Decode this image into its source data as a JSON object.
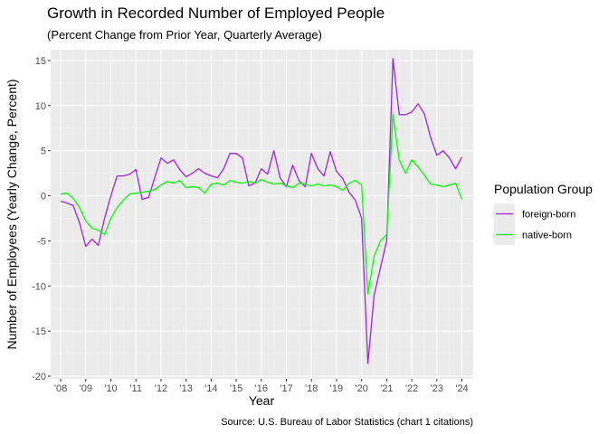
{
  "chart_data": {
    "type": "line",
    "title": "Growth in Recorded Number of Employed People",
    "subtitle": "(Percent Change from Prior Year, Quarterly Average)",
    "xlabel": "Year",
    "ylabel": "Number of Employees (Yearly Change, Percent)",
    "caption": "Source: U.S. Bureau of Labor Statistics (chart 1 citations)",
    "xlim": [
      2007.6,
      2024.45
    ],
    "ylim": [
      -20.3,
      16.2
    ],
    "x_ticks": [
      {
        "value": 2008,
        "label": "'08"
      },
      {
        "value": 2009,
        "label": "'09"
      },
      {
        "value": 2010,
        "label": "'10"
      },
      {
        "value": 2011,
        "label": "'11"
      },
      {
        "value": 2012,
        "label": "'12"
      },
      {
        "value": 2013,
        "label": "'13"
      },
      {
        "value": 2014,
        "label": "'14"
      },
      {
        "value": 2015,
        "label": "'15"
      },
      {
        "value": 2016,
        "label": "'16"
      },
      {
        "value": 2017,
        "label": "'17"
      },
      {
        "value": 2018,
        "label": "'18"
      },
      {
        "value": 2019,
        "label": "'19"
      },
      {
        "value": 2020,
        "label": "'20"
      },
      {
        "value": 2021,
        "label": "'21"
      },
      {
        "value": 2022,
        "label": "'22"
      },
      {
        "value": 2023,
        "label": "'23"
      },
      {
        "value": 2024,
        "label": "'24"
      }
    ],
    "y_ticks": [
      {
        "value": 15,
        "label": "15"
      },
      {
        "value": 10,
        "label": "10"
      },
      {
        "value": 5,
        "label": "5"
      },
      {
        "value": 0,
        "label": "0"
      },
      {
        "value": -5,
        "label": "-5"
      },
      {
        "value": -10,
        "label": "-10"
      },
      {
        "value": -15,
        "label": "-15"
      },
      {
        "value": -20,
        "label": "-20"
      }
    ],
    "grid": true,
    "panel_background": "#ebebeb",
    "legend": {
      "title": "Population Group",
      "position": "right"
    },
    "x": [
      2008.0,
      2008.25,
      2008.5,
      2008.75,
      2009.0,
      2009.25,
      2009.5,
      2009.75,
      2010.0,
      2010.25,
      2010.5,
      2010.75,
      2011.0,
      2011.25,
      2011.5,
      2011.75,
      2012.0,
      2012.25,
      2012.5,
      2012.75,
      2013.0,
      2013.25,
      2013.5,
      2013.75,
      2014.0,
      2014.25,
      2014.5,
      2014.75,
      2015.0,
      2015.25,
      2015.5,
      2015.75,
      2016.0,
      2016.25,
      2016.5,
      2016.75,
      2017.0,
      2017.25,
      2017.5,
      2017.75,
      2018.0,
      2018.25,
      2018.5,
      2018.75,
      2019.0,
      2019.25,
      2019.5,
      2019.75,
      2020.0,
      2020.25,
      2020.5,
      2020.75,
      2021.0,
      2021.25,
      2021.5,
      2021.75,
      2022.0,
      2022.25,
      2022.5,
      2022.75,
      2023.0,
      2023.25,
      2023.5,
      2023.75,
      2024.0
    ],
    "series": [
      {
        "name": "foreign-born",
        "color": "#a020f0",
        "values": [
          -0.6,
          -0.8,
          -1.1,
          -3.0,
          -5.6,
          -4.8,
          -5.5,
          -2.5,
          0.0,
          2.2,
          2.2,
          2.4,
          2.9,
          -0.4,
          -0.2,
          2.0,
          4.2,
          3.6,
          4.0,
          2.9,
          2.1,
          2.5,
          3.0,
          2.5,
          2.2,
          2.0,
          3.0,
          4.7,
          4.7,
          4.2,
          1.1,
          1.4,
          3.0,
          2.4,
          5.0,
          2.0,
          1.0,
          3.4,
          1.7,
          1.0,
          4.7,
          3.0,
          2.2,
          4.9,
          2.7,
          1.9,
          0.4,
          -0.5,
          -2.5,
          -18.6,
          -11.0,
          -8.0,
          -5.0,
          15.2,
          9.0,
          9.0,
          9.3,
          10.2,
          9.1,
          6.5,
          4.5,
          5.0,
          4.2,
          3.0,
          4.3
        ]
      },
      {
        "name": "native-born",
        "color": "#00ff00",
        "values": [
          0.2,
          0.3,
          -0.3,
          -1.3,
          -2.8,
          -3.6,
          -3.8,
          -4.3,
          -2.5,
          -1.3,
          -0.5,
          0.2,
          0.3,
          0.4,
          0.5,
          0.7,
          1.2,
          1.6,
          1.4,
          1.7,
          0.9,
          1.0,
          0.9,
          0.3,
          1.3,
          1.4,
          1.2,
          1.7,
          1.5,
          1.4,
          1.6,
          1.4,
          1.8,
          1.5,
          1.3,
          1.4,
          1.1,
          0.9,
          1.4,
          1.3,
          1.1,
          1.3,
          1.1,
          1.2,
          1.0,
          0.6,
          1.4,
          1.7,
          1.2,
          -10.9,
          -6.7,
          -5.0,
          -4.3,
          9.0,
          4.0,
          2.5,
          4.0,
          3.2,
          2.3,
          1.3,
          1.2,
          1.0,
          1.2,
          1.4,
          -0.4
        ]
      }
    ]
  }
}
